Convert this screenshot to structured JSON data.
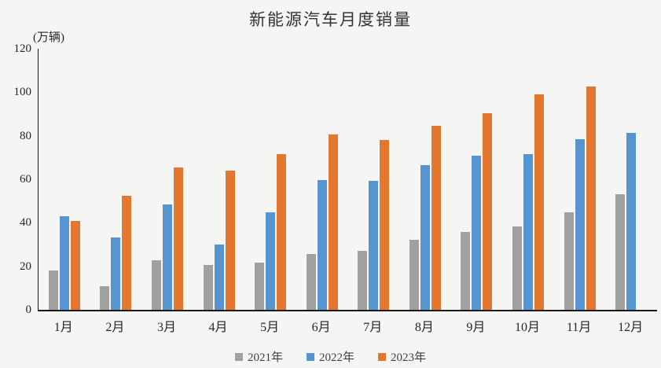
{
  "chart_data": {
    "type": "bar",
    "title": "新能源汽车月度销量",
    "unit": "(万辆)",
    "categories": [
      "1月",
      "2月",
      "3月",
      "4月",
      "5月",
      "6月",
      "7月",
      "8月",
      "9月",
      "10月",
      "11月",
      "12月"
    ],
    "series": [
      {
        "name": "2021年",
        "color": "#A0A0A0",
        "values": [
          17.9,
          11.0,
          22.6,
          20.6,
          21.7,
          25.6,
          27.1,
          32.1,
          35.7,
          38.3,
          45.0,
          53.1
        ]
      },
      {
        "name": "2022年",
        "color": "#5695CF",
        "values": [
          43.1,
          33.4,
          48.4,
          29.9,
          44.7,
          59.6,
          59.3,
          66.6,
          70.8,
          71.4,
          78.6,
          81.4
        ]
      },
      {
        "name": "2023年",
        "color": "#E3772E",
        "values": [
          40.8,
          52.5,
          65.3,
          64.0,
          71.7,
          80.6,
          78.0,
          84.6,
          90.4,
          99.0,
          102.6,
          null
        ]
      }
    ],
    "ylim": [
      0,
      120
    ],
    "yticks": [
      0,
      20,
      40,
      60,
      80,
      100,
      120
    ],
    "grid": false,
    "legend_position": "bottom"
  },
  "colors": {
    "background": "#F5F5F3",
    "axis": "#1A1A1A",
    "text": "#333333"
  }
}
